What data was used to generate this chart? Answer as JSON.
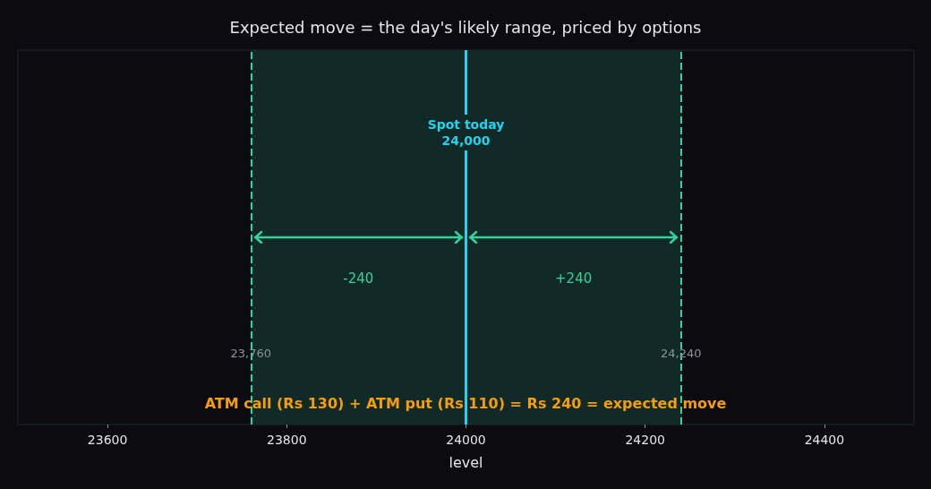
{
  "chart_data": {
    "type": "bar",
    "orientation": "horizontal",
    "categories": [
      null
    ],
    "base": [
      23760
    ],
    "values": [
      480
    ],
    "color": "#112a27",
    "title": "Expected move = the day's likely range, priced by options",
    "xlabel": "level",
    "xlim": [
      23500,
      24500
    ],
    "xticks": [
      23600,
      23800,
      24000,
      24200,
      24400
    ],
    "ref_lines": [
      {
        "axis": "x",
        "value": 23760,
        "label": "23,760",
        "color": "#34d399",
        "line_style": "dashed"
      },
      {
        "axis": "x",
        "value": 24000,
        "label": "Spot today\n24,000",
        "color": "#22d3ee",
        "line_style": "solid"
      },
      {
        "axis": "x",
        "value": 24240,
        "label": "24,240",
        "color": "#34d399",
        "line_style": "dashed"
      }
    ],
    "annotations": [
      "-240",
      "+240",
      "ATM call (Rs 130) + ATM put (Rs 110) = Rs 240 = expected move"
    ]
  }
}
